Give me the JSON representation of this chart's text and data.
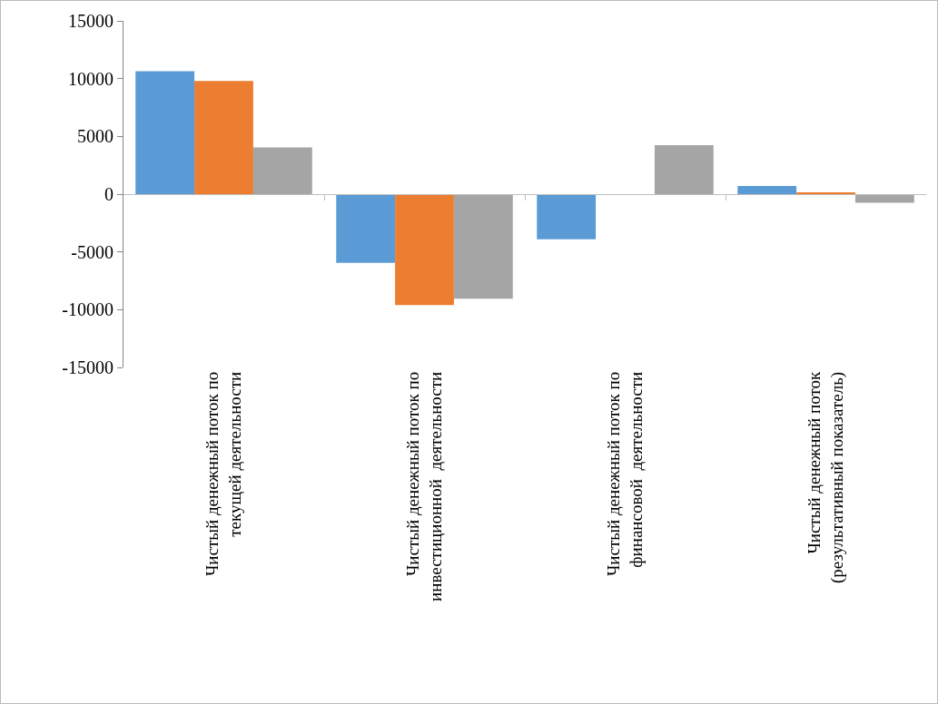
{
  "chart_data": {
    "type": "bar",
    "categories": [
      "Чистый денежный поток по\nтекущей деятельности",
      "Чистый денежный поток по\nинвестиционной  деятельности",
      "Чистый денежный поток по\nфинансовой  деятельности",
      "Чистый денежный поток\n(результативный показатель)"
    ],
    "series": [
      {
        "color": "#5b9bd5",
        "values": [
          10650,
          -5950,
          -3900,
          700
        ]
      },
      {
        "color": "#ed7d31",
        "values": [
          9800,
          -9600,
          null,
          150
        ]
      },
      {
        "color": "#a5a5a5",
        "values": [
          4050,
          -9050,
          4250,
          -750
        ]
      }
    ],
    "ylim": [
      -15000,
      15000
    ],
    "yticks": [
      -15000,
      -10000,
      -5000,
      0,
      5000,
      10000,
      15000
    ]
  }
}
